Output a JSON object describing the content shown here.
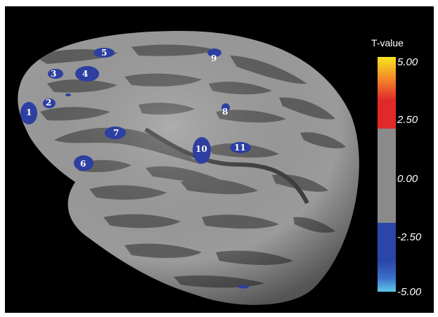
{
  "figure": {
    "legend": {
      "title": "T-value",
      "ticks": [
        "5.00",
        "2.50",
        "0.00",
        "-2.50",
        "-5.00"
      ],
      "colors": {
        "positive_top": "#f5e51e",
        "positive_mid": "#f58a2a",
        "positive": "#e02a2a",
        "neutral": "#8a8a8a",
        "negative": "#2b46a8",
        "negative_mid": "#3a6fc8",
        "negative_bottom": "#5ec8e8"
      }
    },
    "surface": {
      "background": "#000000",
      "gyri_color": "#9b9b9b",
      "sulci_color": "#5e5e5e",
      "blob_color": "#2d3fa0"
    },
    "regions": [
      "1",
      "2",
      "3",
      "4",
      "5",
      "6",
      "7",
      "8",
      "9",
      "10",
      "11"
    ]
  }
}
